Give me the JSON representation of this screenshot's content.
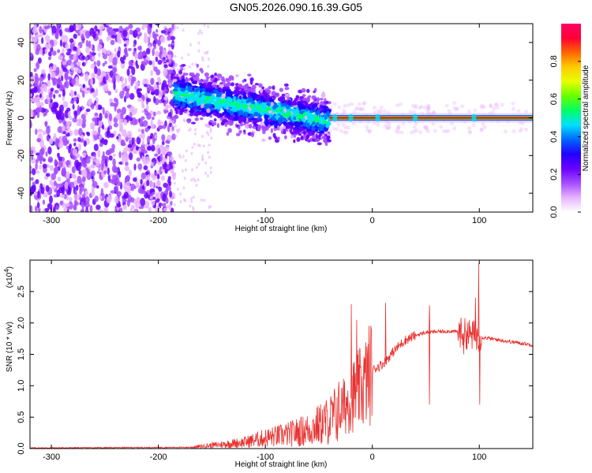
{
  "title": "GN05.2026.090.16.39.G05",
  "chart_data": [
    {
      "type": "heatmap",
      "xlabel": "Height of straight line (km)",
      "ylabel": "Frequency (Hz)",
      "xlim": [
        -320,
        150
      ],
      "ylim": [
        -50,
        50
      ],
      "xticks": [
        -300,
        -200,
        -100,
        0,
        100
      ],
      "yticks": [
        -40,
        -20,
        0,
        20,
        40
      ],
      "colorbar": {
        "label": "Normalized spectral amplitude",
        "range": [
          0,
          1
        ],
        "ticks": [
          0.0,
          0.2,
          0.4,
          0.6,
          0.8
        ],
        "colors": [
          "#ffffff",
          "#e6b3ff",
          "#a64dff",
          "#6a00ff",
          "#2200ff",
          "#0066ff",
          "#00e0ff",
          "#00ff66",
          "#66ff00",
          "#e6ff00",
          "#ffcc00",
          "#ff6600",
          "#ff0033",
          "#ff0066"
        ]
      },
      "regions": [
        {
          "x_range": [
            -320,
            -185
          ],
          "freq_range": [
            -50,
            50
          ],
          "amplitude": 0.15,
          "pattern": "noise"
        },
        {
          "x_range": [
            -185,
            -40
          ],
          "freq_start": [
            -185,
            13
          ],
          "freq_end": [
            -40,
            -2
          ],
          "spread": 9,
          "amplitude": 0.3
        },
        {
          "x_range": [
            -40,
            150
          ],
          "freq": 0,
          "amplitude": 0.9,
          "pattern": "carrier"
        }
      ]
    },
    {
      "type": "line",
      "xlabel": "Height of straight line (km)",
      "ylabel": "SNR (10 * v/v)",
      "y_scale_label": "(x10",
      "y_scale_exp": "4",
      "xlim": [
        -320,
        150
      ],
      "ylim": [
        0,
        3.0
      ],
      "xticks": [
        -300,
        -200,
        -100,
        0,
        100
      ],
      "yticks": [
        0.0,
        0.5,
        1.0,
        1.5,
        2.0,
        2.5
      ],
      "color": "#e8312f",
      "key_points": [
        [
          -320,
          0.01
        ],
        [
          -170,
          0.02
        ],
        [
          -150,
          0.05
        ],
        [
          -120,
          0.1
        ],
        [
          -100,
          0.17
        ],
        [
          -80,
          0.22
        ],
        [
          -60,
          0.3
        ],
        [
          -40,
          0.45
        ],
        [
          -25,
          0.7
        ],
        [
          -15,
          0.9
        ],
        [
          -8,
          1.0
        ],
        [
          -4,
          1.15
        ],
        [
          0,
          1.25
        ],
        [
          10,
          1.35
        ],
        [
          15,
          1.45
        ],
        [
          20,
          1.55
        ],
        [
          30,
          1.72
        ],
        [
          40,
          1.8
        ],
        [
          50,
          1.85
        ],
        [
          70,
          1.87
        ],
        [
          80,
          1.86
        ],
        [
          90,
          1.82
        ],
        [
          100,
          1.78
        ],
        [
          110,
          1.75
        ],
        [
          130,
          1.7
        ],
        [
          150,
          1.65
        ]
      ],
      "spikes": [
        [
          -20,
          2.3
        ],
        [
          -15,
          2.05
        ],
        [
          12,
          2.32
        ],
        [
          53,
          2.28
        ],
        [
          53,
          0.7
        ],
        [
          85,
          1.5
        ],
        [
          96,
          2.4
        ],
        [
          99,
          2.95
        ],
        [
          100,
          0.7
        ]
      ]
    }
  ]
}
